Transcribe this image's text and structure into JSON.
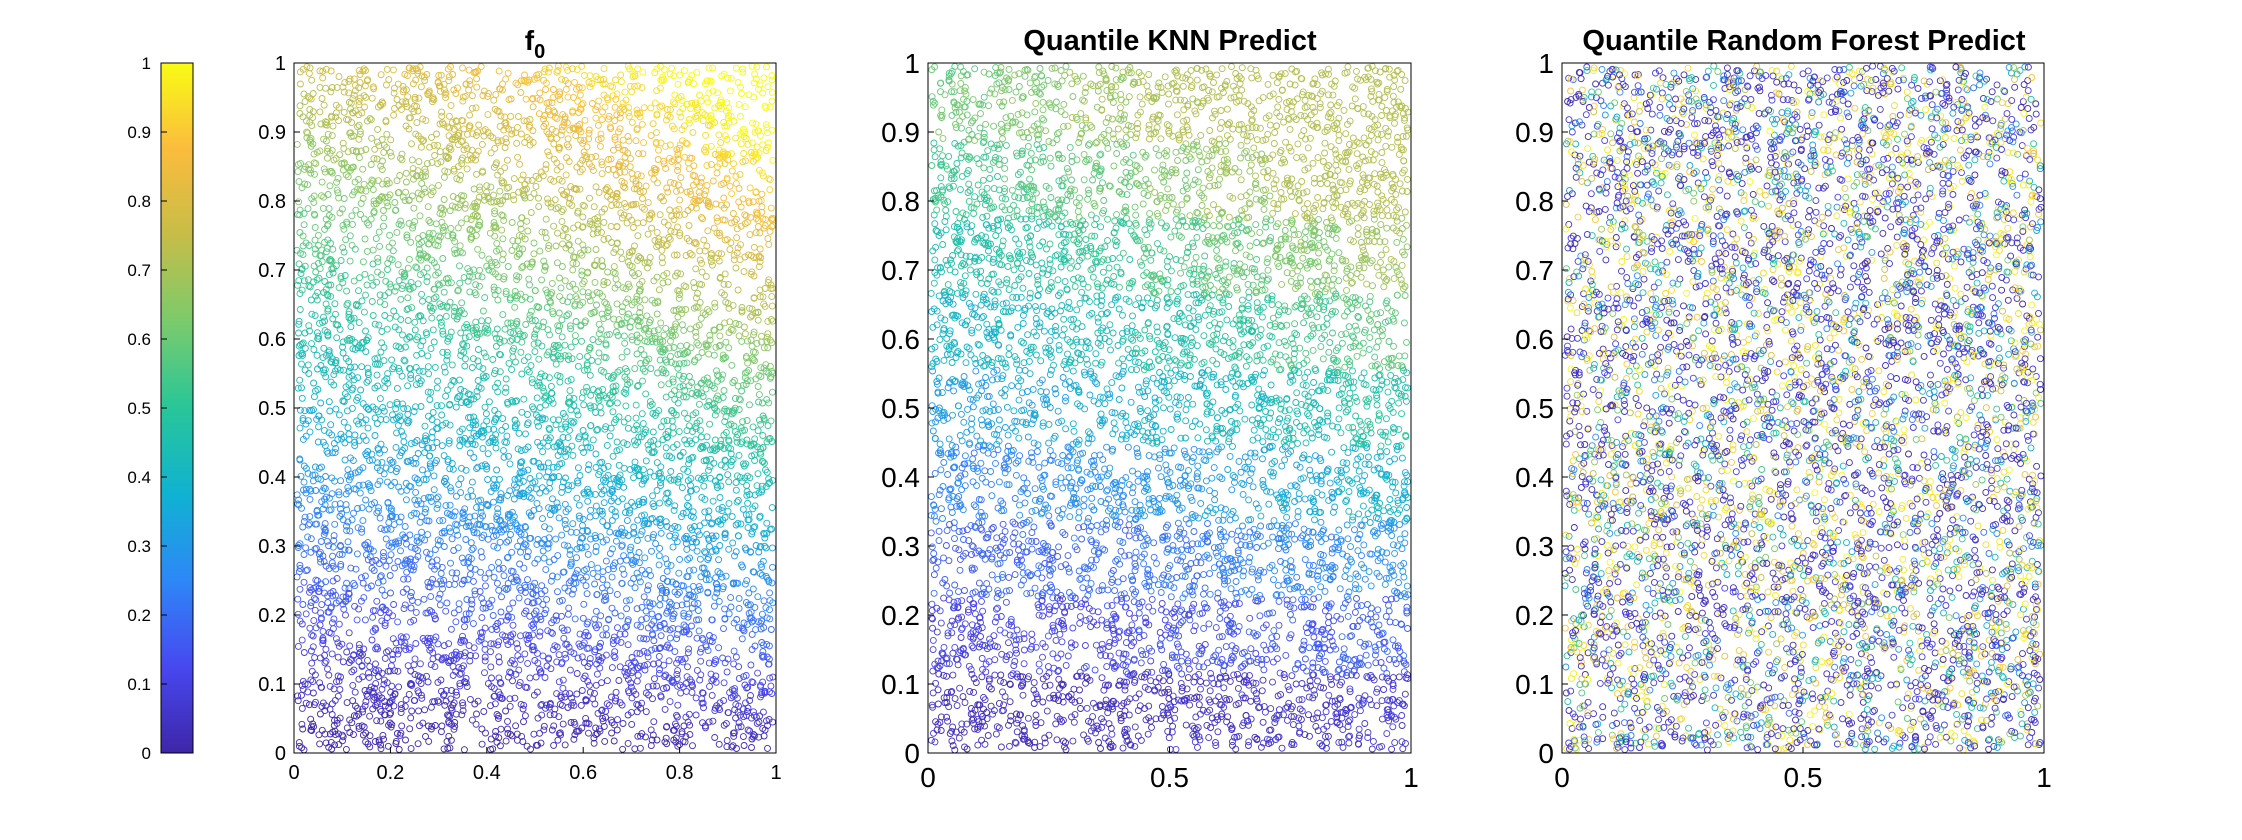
{
  "colormap": {
    "name": "parula",
    "stops": [
      "#3e26a8",
      "#4748f0",
      "#2e87f7",
      "#10b2d2",
      "#28c699",
      "#7bcb6c",
      "#c6bd48",
      "#fbbc3d",
      "#f9fb15"
    ]
  },
  "colorbar": {
    "range": [
      0,
      1
    ],
    "ticks": [
      "0",
      "0.1",
      "0.2",
      "0.3",
      "0.4",
      "0.5",
      "0.6",
      "0.7",
      "0.8",
      "0.9",
      "1"
    ]
  },
  "chart_data": [
    {
      "type": "scatter",
      "title": "f",
      "title_subscript": "0",
      "xlim": [
        0,
        1
      ],
      "ylim": [
        0,
        1
      ],
      "xticks": [
        "0",
        "0.2",
        "0.4",
        "0.6",
        "0.8",
        "1"
      ],
      "yticks": [
        "0",
        "0.1",
        "0.2",
        "0.3",
        "0.4",
        "0.5",
        "0.6",
        "0.7",
        "0.8",
        "0.9",
        "1"
      ],
      "marker": "open-circle",
      "color_pattern": "smooth gradient, low at bottom-left rising to high at top-right",
      "approx_points": 6000,
      "grid": false
    },
    {
      "type": "scatter",
      "title": "Quantile KNN Predict",
      "xlim": [
        0,
        1
      ],
      "ylim": [
        0,
        1
      ],
      "xticks": [
        "0",
        "0.5",
        "1"
      ],
      "yticks": [
        "0",
        "0.1",
        "0.2",
        "0.3",
        "0.4",
        "0.5",
        "0.6",
        "0.7",
        "0.8",
        "0.9",
        "1"
      ],
      "marker": "open-circle",
      "color_pattern": "blocky gradient, low at bottom-left rising toward top-right, max about 0.7",
      "approx_points": 6000,
      "grid": false
    },
    {
      "type": "scatter",
      "title": "Quantile Random Forest Predict",
      "xlim": [
        0,
        1
      ],
      "ylim": [
        0,
        1
      ],
      "xticks": [
        "0",
        "0.5",
        "1"
      ],
      "yticks": [
        "0",
        "0.1",
        "0.2",
        "0.3",
        "0.4",
        "0.5",
        "0.6",
        "0.7",
        "0.8",
        "0.9",
        "1"
      ],
      "marker": "open-circle",
      "color_pattern": "noisy, values spread across full range with no clear gradient",
      "approx_points": 6000,
      "grid": false
    }
  ]
}
